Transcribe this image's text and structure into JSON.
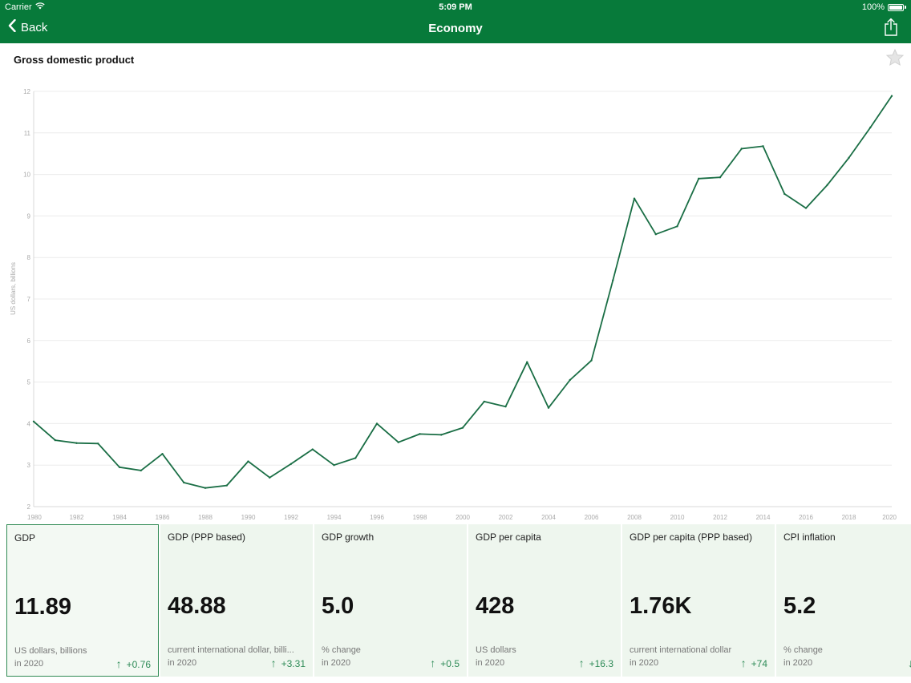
{
  "status": {
    "carrier": "Carrier",
    "time": "5:09 PM",
    "battery": "100%"
  },
  "nav": {
    "back_label": "Back",
    "title": "Economy"
  },
  "accent_color": "#077a3a",
  "chart_data": {
    "type": "line",
    "title": "Gross domestic product",
    "xlabel": "",
    "ylabel": "US dollars, billions",
    "xlim": [
      1980,
      2020
    ],
    "ylim": [
      2,
      12
    ],
    "x_ticks": [
      "1980",
      "1982",
      "1984",
      "1986",
      "1988",
      "1990",
      "1992",
      "1994",
      "1996",
      "1998",
      "2000",
      "2002",
      "2004",
      "2006",
      "2008",
      "2010",
      "2012",
      "2014",
      "2016",
      "2018",
      "2020"
    ],
    "y_ticks": [
      "2",
      "3",
      "4",
      "5",
      "6",
      "7",
      "8",
      "9",
      "10",
      "11",
      "12"
    ],
    "grid": true,
    "line_color": "#1a6e45",
    "series": [
      {
        "x": [
          1980,
          1981,
          1982,
          1983,
          1984,
          1985,
          1986,
          1987,
          1988,
          1989,
          1990,
          1991,
          1992,
          1993,
          1994,
          1995,
          1996,
          1997,
          1998,
          1999,
          2000,
          2001,
          2002,
          2003,
          2004,
          2005,
          2006,
          2007,
          2008,
          2009,
          2010,
          2011,
          2012,
          2013,
          2014,
          2015,
          2016,
          2017,
          2018,
          2019,
          2020
        ],
        "y": [
          4.05,
          3.6,
          3.53,
          3.52,
          2.95,
          2.87,
          3.27,
          2.58,
          2.45,
          2.51,
          3.09,
          2.7,
          3.03,
          3.38,
          3.0,
          3.17,
          4.0,
          3.55,
          3.75,
          3.73,
          3.9,
          4.53,
          4.41,
          5.48,
          4.38,
          5.05,
          5.52,
          7.45,
          9.42,
          8.56,
          8.75,
          9.9,
          9.93,
          10.62,
          10.68,
          9.53,
          9.19,
          9.75,
          10.4,
          11.13,
          11.89
        ]
      }
    ]
  },
  "cards": [
    {
      "title": "GDP",
      "value": "11.89",
      "unit": "US dollars, billions",
      "year": "in 2020",
      "arrow": "↑",
      "delta": "+0.76",
      "active": true
    },
    {
      "title": "GDP (PPP based)",
      "value": "48.88",
      "unit": "current international dollar, billi...",
      "year": "in 2020",
      "arrow": "↑",
      "delta": "+3.31",
      "active": false
    },
    {
      "title": "GDP growth",
      "value": "5.0",
      "unit": "% change",
      "year": "in 2020",
      "arrow": "↑",
      "delta": "+0.5",
      "active": false
    },
    {
      "title": "GDP per capita",
      "value": "428",
      "unit": "US dollars",
      "year": "in 2020",
      "arrow": "↑",
      "delta": "+16.3",
      "active": false
    },
    {
      "title": "GDP per capita (PPP based)",
      "value": "1.76K",
      "unit": "current international dollar",
      "year": "in 2020",
      "arrow": "↑",
      "delta": "+74",
      "active": false
    },
    {
      "title": "CPI inflation",
      "value": "5.2",
      "unit": "% change",
      "year": "in 2020",
      "arrow": "↓",
      "delta": "-",
      "active": false
    }
  ]
}
